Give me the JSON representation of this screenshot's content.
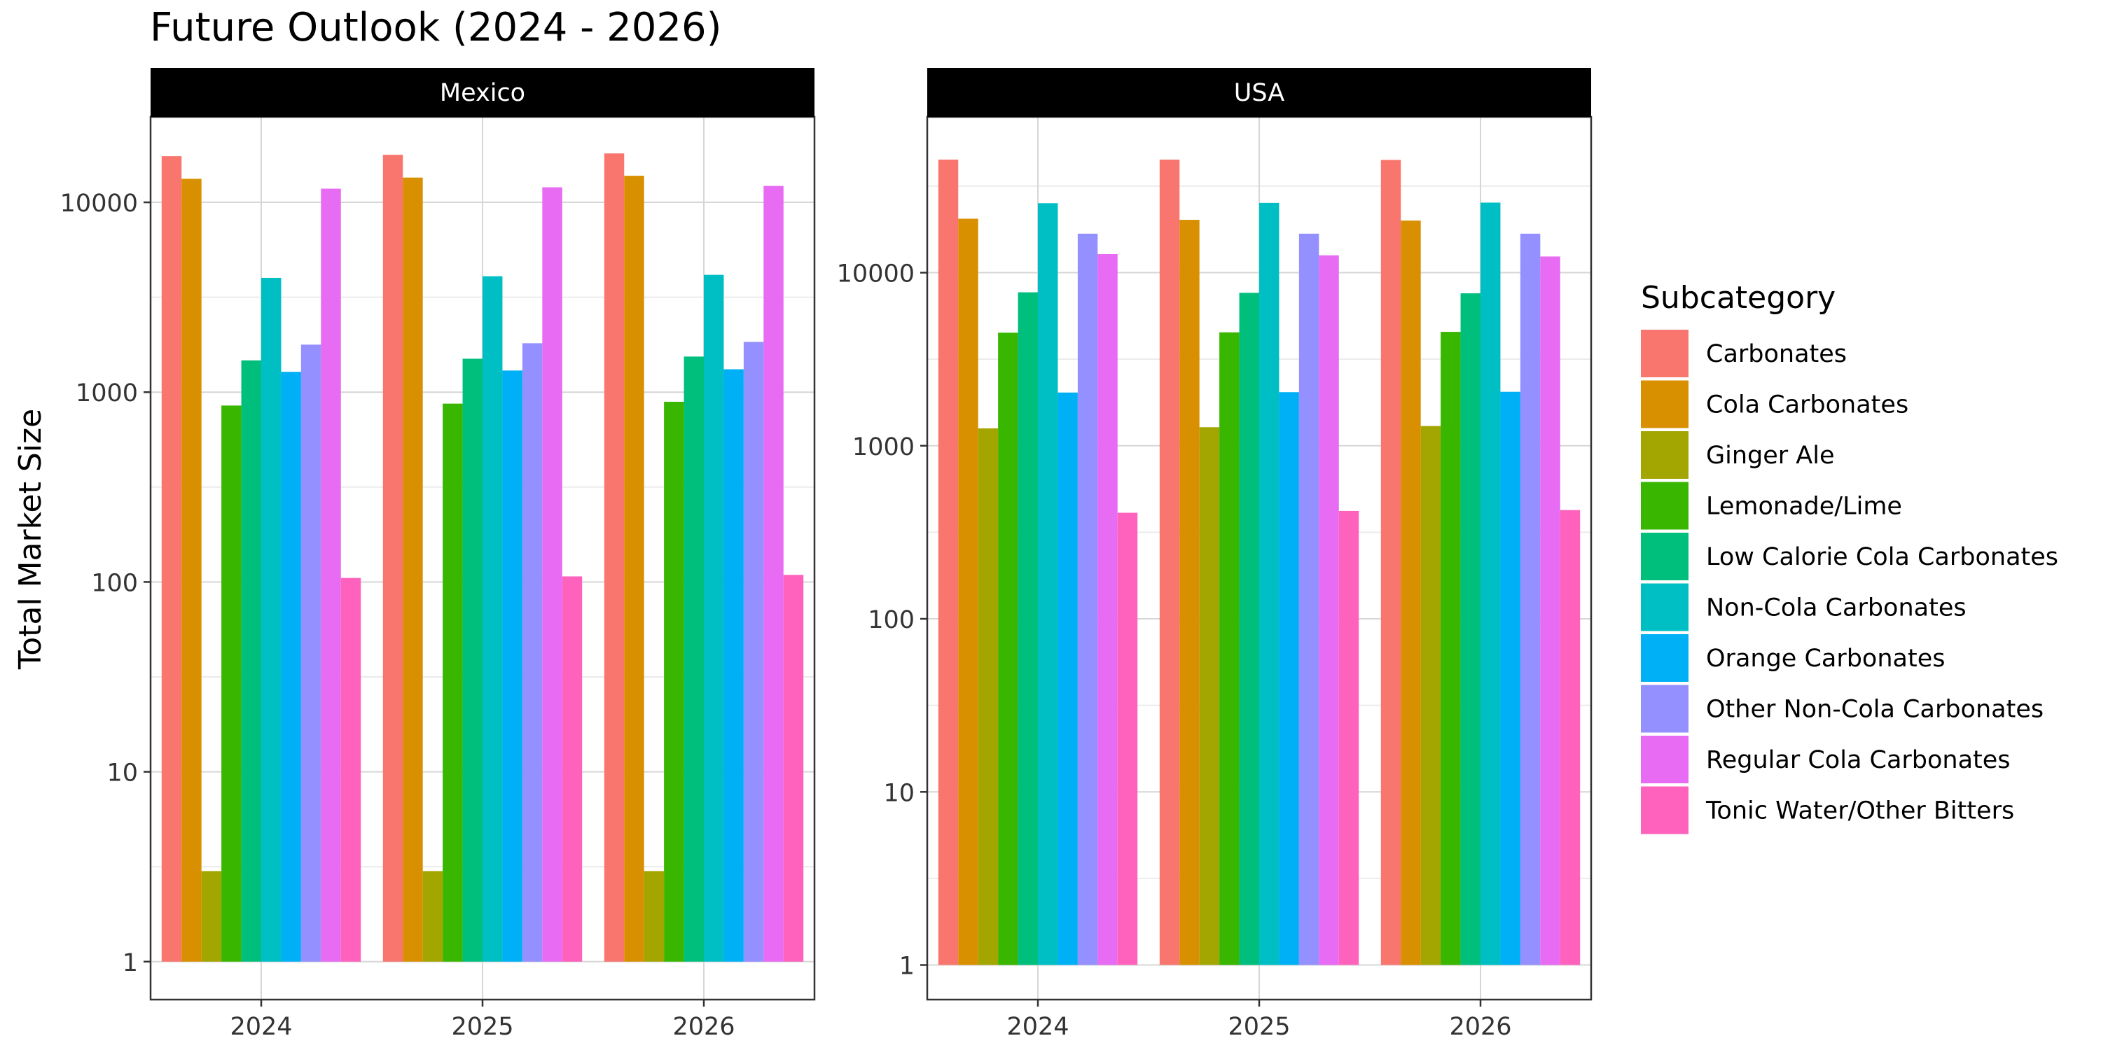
{
  "chart_data": {
    "type": "bar",
    "title": "Future Outlook (2024 - 2026)",
    "ylabel": "Total Market Size",
    "xlabel": "",
    "y_scale": "log10",
    "grid": true,
    "legend_position": "right",
    "legend_title": "Subcategory",
    "categories": [
      "2024",
      "2025",
      "2026"
    ],
    "y_ticks": [
      1,
      10,
      100,
      1000,
      10000
    ],
    "y_tick_labels": [
      "1",
      "10",
      "100",
      "1000",
      "10000"
    ],
    "series_meta": [
      {
        "name": "Carbonates",
        "color": "#F8766D"
      },
      {
        "name": "Cola Carbonates",
        "color": "#D89000"
      },
      {
        "name": "Ginger Ale",
        "color": "#A3A500"
      },
      {
        "name": "Lemonade/Lime",
        "color": "#39B600"
      },
      {
        "name": "Low Calorie Cola Carbonates",
        "color": "#00BF7D"
      },
      {
        "name": "Non-Cola Carbonates",
        "color": "#00BFC4"
      },
      {
        "name": "Orange Carbonates",
        "color": "#00B0F6"
      },
      {
        "name": "Other Non-Cola Carbonates",
        "color": "#9590FF"
      },
      {
        "name": "Regular Cola Carbonates",
        "color": "#E76BF3"
      },
      {
        "name": "Tonic Water/Other Bitters",
        "color": "#FF62BC"
      }
    ],
    "panels": [
      {
        "strip": "Mexico",
        "y_log_range": [
          -0.2,
          4.45
        ],
        "series": [
          {
            "name": "Carbonates",
            "values": [
              17500,
              17800,
              18100
            ]
          },
          {
            "name": "Cola Carbonates",
            "values": [
              13300,
              13500,
              13800
            ]
          },
          {
            "name": "Ginger Ale",
            "values": [
              3,
              3,
              3
            ]
          },
          {
            "name": "Lemonade/Lime",
            "values": [
              850,
              870,
              890
            ]
          },
          {
            "name": "Low Calorie Cola Carbonates",
            "values": [
              1470,
              1500,
              1540
            ]
          },
          {
            "name": "Non-Cola Carbonates",
            "values": [
              4000,
              4080,
              4150
            ]
          },
          {
            "name": "Orange Carbonates",
            "values": [
              1280,
              1300,
              1320
            ]
          },
          {
            "name": "Other Non-Cola Carbonates",
            "values": [
              1780,
              1810,
              1840
            ]
          },
          {
            "name": "Regular Cola Carbonates",
            "values": [
              11800,
              12000,
              12200
            ]
          },
          {
            "name": "Tonic Water/Other Bitters",
            "values": [
              105,
              107,
              109
            ]
          }
        ]
      },
      {
        "strip": "USA",
        "y_log_range": [
          -0.2,
          4.9
        ],
        "series": [
          {
            "name": "Carbonates",
            "values": [
              45000,
              45000,
              44800
            ]
          },
          {
            "name": "Cola Carbonates",
            "values": [
              20500,
              20200,
              20000
            ]
          },
          {
            "name": "Ginger Ale",
            "values": [
              1260,
              1280,
              1300
            ]
          },
          {
            "name": "Lemonade/Lime",
            "values": [
              4500,
              4520,
              4550
            ]
          },
          {
            "name": "Low Calorie Cola Carbonates",
            "values": [
              7700,
              7650,
              7600
            ]
          },
          {
            "name": "Non-Cola Carbonates",
            "values": [
              25200,
              25300,
              25400
            ]
          },
          {
            "name": "Orange Carbonates",
            "values": [
              2030,
              2040,
              2050
            ]
          },
          {
            "name": "Other Non-Cola Carbonates",
            "values": [
              16800,
              16800,
              16800
            ]
          },
          {
            "name": "Regular Cola Carbonates",
            "values": [
              12800,
              12600,
              12400
            ]
          },
          {
            "name": "Tonic Water/Other Bitters",
            "values": [
              410,
              420,
              425
            ]
          }
        ]
      }
    ]
  }
}
